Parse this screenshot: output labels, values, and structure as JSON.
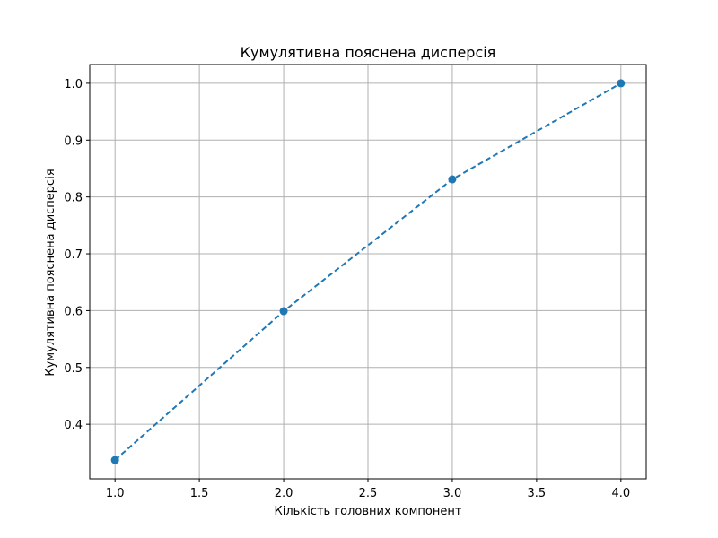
{
  "chart_data": {
    "type": "line",
    "title": "Кумулятивна пояснена дисперсія",
    "xlabel": "Кількість головних компонент",
    "ylabel": "Кумулятивна пояснена дисперсія",
    "x": [
      1,
      2,
      3,
      4
    ],
    "series": [
      {
        "values": [
          0.337,
          0.599,
          0.831,
          1.0
        ],
        "color": "#1f77b4",
        "line_style": "dashed",
        "marker": "circle"
      }
    ],
    "xlim": [
      0.85,
      4.15
    ],
    "ylim": [
      0.304,
      1.033
    ],
    "xticks": [
      1.0,
      1.5,
      2.0,
      2.5,
      3.0,
      3.5,
      4.0
    ],
    "xtick_labels": [
      "1.0",
      "1.5",
      "2.0",
      "2.5",
      "3.0",
      "3.5",
      "4.0"
    ],
    "yticks": [
      0.4,
      0.5,
      0.6,
      0.7,
      0.8,
      0.9,
      1.0
    ],
    "ytick_labels": [
      "0.4",
      "0.5",
      "0.6",
      "0.7",
      "0.8",
      "0.9",
      "1.0"
    ],
    "grid": true,
    "grid_color": "#b0b0b0"
  }
}
